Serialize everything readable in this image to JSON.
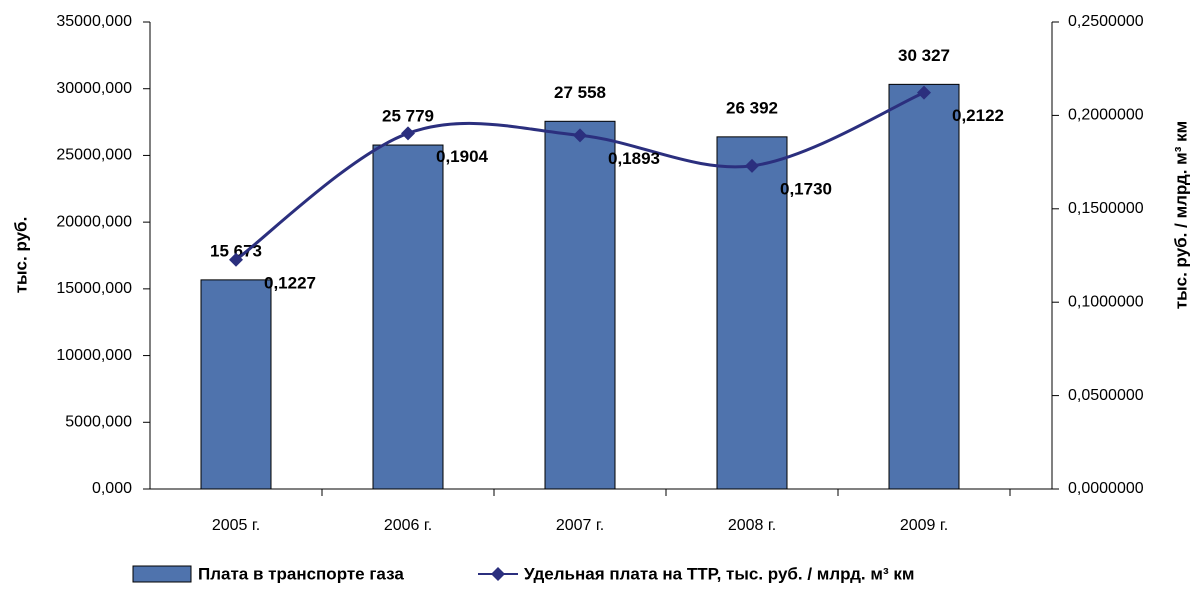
{
  "chart_data": {
    "type": "bar",
    "categories": [
      "2005 г.",
      "2006 г.",
      "2007 г.",
      "2008 г.",
      "2009 г."
    ],
    "series": [
      {
        "name": "Плата в транспорте газа",
        "color": "#4f73ad",
        "values": [
          15673,
          25779,
          27558,
          26392,
          30327
        ],
        "value_labels": [
          "15 673",
          "25 779",
          "27 558",
          "26 392",
          "30 327"
        ]
      },
      {
        "name": "Удельная плата на ТТР, тыс. руб. / млрд. м³ км",
        "color": "#2b2f7e",
        "type": "line",
        "axis": "y2",
        "values": [
          0.1227,
          0.1904,
          0.1893,
          0.173,
          0.2122
        ],
        "value_labels": [
          "0,1227",
          "0,1904",
          "0,1893",
          "0,1730",
          "0,2122"
        ]
      }
    ],
    "y_label": "тыс. руб.",
    "y2_label": "тыс. руб. / млрд. м³ км",
    "ylim": [
      0,
      35000
    ],
    "yticks": [
      {
        "value": 0,
        "label": "0,000"
      },
      {
        "value": 5000,
        "label": "5000,000"
      },
      {
        "value": 10000,
        "label": "10000,000"
      },
      {
        "value": 15000,
        "label": "15000,000"
      },
      {
        "value": 20000,
        "label": "20000,000"
      },
      {
        "value": 25000,
        "label": "25000,000"
      },
      {
        "value": 30000,
        "label": "30000,000"
      },
      {
        "value": 35000,
        "label": "35000,000"
      }
    ],
    "y2lim": [
      0,
      0.25
    ],
    "y2ticks": [
      {
        "value": 0,
        "label": "0,0000000"
      },
      {
        "value": 0.05,
        "label": "0,0500000"
      },
      {
        "value": 0.1,
        "label": "0,1000000"
      },
      {
        "value": 0.15,
        "label": "0,1500000"
      },
      {
        "value": 0.2,
        "label": "0,2000000"
      },
      {
        "value": 0.25,
        "label": "0,2500000"
      }
    ],
    "legend": "bottom"
  }
}
